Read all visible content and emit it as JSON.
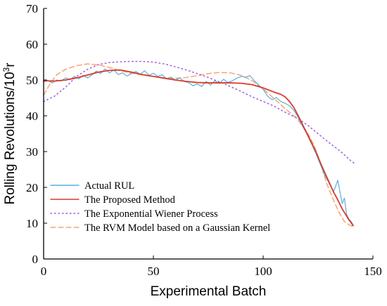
{
  "chart_data": {
    "type": "line",
    "xlabel": "Experimental Batch",
    "ylabel": "Rolling Revolutions/10³r",
    "xlim": [
      0,
      150
    ],
    "ylim": [
      0,
      70
    ],
    "xticks": [
      0,
      50,
      100,
      150
    ],
    "yticks": [
      0,
      10,
      20,
      30,
      40,
      50,
      60,
      70
    ],
    "grid": false,
    "legend_position": "bottom-left",
    "series": [
      {
        "name": "Actual RUL",
        "color": "#5aaee0",
        "style": "solid",
        "x": [
          0,
          2,
          4,
          6,
          8,
          10,
          12,
          14,
          16,
          18,
          20,
          22,
          24,
          26,
          28,
          30,
          32,
          34,
          36,
          38,
          40,
          42,
          44,
          46,
          48,
          50,
          52,
          54,
          56,
          58,
          60,
          62,
          64,
          66,
          68,
          70,
          72,
          74,
          76,
          78,
          80,
          82,
          84,
          86,
          88,
          90,
          92,
          94,
          96,
          98,
          100,
          102,
          104,
          106,
          108,
          110,
          112,
          114,
          116,
          118,
          120,
          122,
          124,
          126,
          128,
          130,
          132,
          134,
          136,
          137,
          138,
          139,
          140,
          141
        ],
        "values": [
          49.5,
          49.8,
          49.2,
          50.0,
          49.7,
          50.6,
          50.1,
          51.0,
          50.3,
          51.3,
          50.6,
          51.4,
          52.5,
          51.8,
          53.1,
          52.0,
          52.8,
          51.5,
          52.0,
          51.1,
          51.8,
          52.4,
          51.6,
          52.6,
          51.3,
          51.9,
          51.0,
          51.5,
          50.3,
          50.8,
          50.0,
          50.6,
          49.6,
          49.3,
          48.4,
          48.9,
          48.2,
          49.6,
          48.6,
          49.8,
          49.0,
          50.2,
          49.3,
          49.8,
          50.5,
          51.0,
          50.8,
          51.2,
          49.8,
          48.6,
          47.4,
          45.5,
          44.5,
          45.1,
          44.0,
          43.5,
          42.8,
          41.5,
          39.5,
          37.0,
          34.8,
          32.2,
          29.5,
          26.5,
          23.5,
          21.2,
          18.7,
          22.0,
          15.5,
          17.0,
          12.5,
          11.2,
          10.5,
          9.5
        ]
      },
      {
        "name": "The Proposed Method",
        "color": "#d93a2b",
        "style": "solid",
        "x": [
          0,
          5,
          10,
          15,
          20,
          25,
          30,
          35,
          40,
          45,
          50,
          55,
          60,
          65,
          70,
          75,
          80,
          85,
          90,
          95,
          100,
          105,
          108,
          110,
          112,
          114,
          116,
          118,
          120,
          122,
          124,
          126,
          128,
          130,
          132,
          134,
          136,
          137,
          138,
          139,
          140,
          141
        ],
        "values": [
          49.8,
          49.7,
          50.0,
          50.6,
          51.4,
          52.2,
          52.7,
          52.8,
          52.2,
          51.5,
          51.0,
          50.5,
          50.0,
          49.6,
          49.3,
          49.2,
          49.2,
          49.2,
          49.1,
          48.7,
          47.8,
          46.6,
          46.0,
          45.3,
          44.0,
          42.3,
          40.0,
          37.5,
          35.0,
          32.5,
          30.0,
          27.0,
          24.2,
          21.5,
          18.8,
          16.5,
          14.0,
          13.0,
          12.0,
          11.0,
          10.2,
          9.3
        ]
      },
      {
        "name": "The Exponential Wiener Process",
        "color": "#a35be0",
        "style": "dotted",
        "x": [
          0,
          5,
          10,
          15,
          20,
          25,
          30,
          35,
          40,
          45,
          50,
          55,
          60,
          65,
          70,
          75,
          80,
          85,
          90,
          95,
          100,
          105,
          110,
          115,
          120,
          125,
          130,
          135,
          140,
          142
        ],
        "values": [
          44.0,
          45.5,
          48.0,
          51.0,
          53.0,
          54.3,
          54.9,
          55.1,
          55.2,
          55.2,
          55.0,
          54.5,
          53.7,
          52.8,
          51.8,
          50.7,
          49.5,
          48.2,
          46.8,
          45.3,
          44.0,
          42.7,
          41.0,
          39.5,
          37.5,
          35.0,
          32.5,
          30.2,
          27.4,
          26.5
        ]
      },
      {
        "name": "The RVM Model based on a Gaussian Kernel",
        "color": "#f5a672",
        "style": "dashed",
        "x": [
          0,
          3,
          6,
          10,
          15,
          20,
          25,
          30,
          35,
          40,
          45,
          50,
          55,
          60,
          65,
          70,
          75,
          80,
          85,
          90,
          95,
          100,
          105,
          110,
          115,
          120,
          123,
          126,
          129,
          132,
          135,
          137,
          139,
          141
        ],
        "values": [
          45.8,
          49.0,
          51.5,
          53.0,
          54.0,
          54.5,
          54.2,
          53.5,
          52.6,
          51.9,
          51.4,
          51.0,
          50.6,
          50.5,
          50.7,
          51.2,
          51.8,
          52.1,
          52.0,
          51.3,
          49.8,
          47.5,
          44.8,
          42.0,
          39.5,
          35.5,
          32.0,
          27.0,
          21.0,
          16.5,
          12.5,
          10.5,
          9.6,
          9.0
        ]
      }
    ]
  }
}
